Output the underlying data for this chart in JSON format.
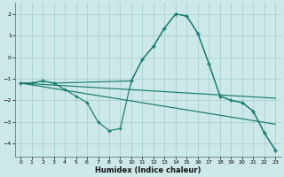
{
  "xlabel": "Humidex (Indice chaleur)",
  "xlim": [
    -0.5,
    23.5
  ],
  "ylim": [
    -4.6,
    2.5
  ],
  "xticks": [
    0,
    1,
    2,
    3,
    4,
    5,
    6,
    7,
    8,
    9,
    10,
    11,
    12,
    13,
    14,
    15,
    16,
    17,
    18,
    19,
    20,
    21,
    22,
    23
  ],
  "yticks": [
    -4,
    -3,
    -2,
    -1,
    0,
    1,
    2
  ],
  "bg_color": "#cce8e8",
  "grid_color": "#aad0d0",
  "line_color": "#1a7a6e",
  "line1_x": [
    0,
    1,
    2,
    3,
    4,
    5,
    6,
    7,
    8,
    9,
    10,
    11,
    12,
    13,
    14,
    15,
    16,
    17,
    18,
    19,
    20,
    21,
    22,
    23
  ],
  "line1_y": [
    -1.2,
    -1.2,
    -1.1,
    -1.2,
    -1.5,
    -1.8,
    -2.1,
    -3.0,
    -3.4,
    -3.3,
    -1.1,
    -0.1,
    0.5,
    1.35,
    2.0,
    1.9,
    1.1,
    -0.3,
    -1.8,
    -2.0,
    -2.1,
    -2.5,
    -3.5,
    -4.3
  ],
  "line2_x": [
    0,
    1,
    2,
    3,
    10,
    11,
    12,
    13,
    14,
    15,
    16,
    17,
    18,
    19,
    20,
    21,
    22,
    23
  ],
  "line2_y": [
    -1.2,
    -1.2,
    -1.1,
    -1.2,
    -1.1,
    -0.1,
    0.5,
    1.35,
    2.0,
    1.9,
    1.1,
    -0.3,
    -1.8,
    -2.0,
    -2.1,
    -2.5,
    -3.5,
    -4.3
  ],
  "line3_x": [
    0,
    23
  ],
  "line3_y": [
    -1.2,
    -1.9
  ],
  "line4_x": [
    0,
    23
  ],
  "line4_y": [
    -1.2,
    -3.1
  ]
}
